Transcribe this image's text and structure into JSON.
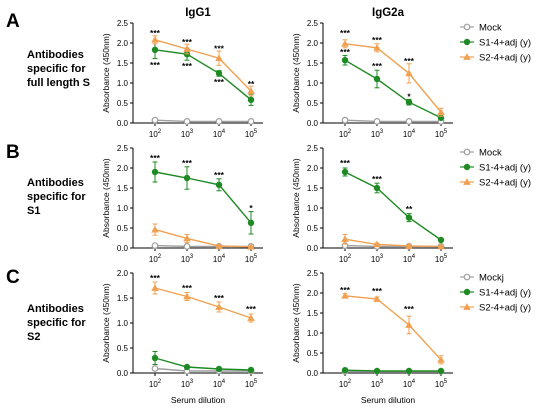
{
  "colors": {
    "mock": "#9e9e9e",
    "s1": "#1e8a24",
    "s2": "#f0a050"
  },
  "panel_letters": [
    "A",
    "B",
    "C"
  ],
  "row_labels": [
    [
      "Antibodies",
      "specific for",
      "full length S"
    ],
    [
      "Antibodies",
      "specific for",
      "S1"
    ],
    [
      "Antibodies",
      "specific for",
      "S2"
    ]
  ],
  "chart_data": [
    {
      "type": "line",
      "panel": "A",
      "title": "IgG1",
      "xlabel": "",
      "ylabel": "Absorbance (450nm)",
      "x": [
        "10^2",
        "10^3",
        "10^4",
        "10^5"
      ],
      "ylim": [
        0,
        2.5
      ],
      "yticks": [
        "0.0",
        "0.5",
        "1.0",
        "1.5",
        "2.0",
        "2.5"
      ],
      "series": [
        {
          "name": "Mock",
          "marker": "circle",
          "values": [
            0.07,
            0.04,
            0.04,
            0.04
          ],
          "errors": [
            0.02,
            0.01,
            0.01,
            0.01
          ]
        },
        {
          "name": "S1-4+adj (y)",
          "marker": "dot",
          "values": [
            1.83,
            1.72,
            1.24,
            0.58
          ],
          "errors": [
            0.22,
            0.15,
            0.07,
            0.14
          ]
        },
        {
          "name": "S2-4+adj (y)",
          "marker": "triangle",
          "values": [
            2.08,
            1.85,
            1.62,
            0.8
          ],
          "errors": [
            0.1,
            0.12,
            0.18,
            0.12
          ]
        }
      ],
      "annotations": [
        {
          "text": "***",
          "x": 0,
          "y": 2.25
        },
        {
          "text": "***",
          "x": 0,
          "y": 1.45
        },
        {
          "text": "***",
          "x": 1,
          "y": 2.02
        },
        {
          "text": "***",
          "x": 1,
          "y": 1.42
        },
        {
          "text": "***",
          "x": 2,
          "y": 1.86
        },
        {
          "text": "***",
          "x": 2,
          "y": 1.02
        },
        {
          "text": "**",
          "x": 3,
          "y": 0.97
        }
      ]
    },
    {
      "type": "line",
      "panel": "A",
      "title": "IgG2a",
      "xlabel": "",
      "ylabel": "Absorbance (450nm)",
      "x": [
        "10^2",
        "10^3",
        "10^4",
        "10^5"
      ],
      "ylim": [
        0,
        2.5
      ],
      "yticks": [
        "0.0",
        "0.5",
        "1.0",
        "1.5",
        "2.0",
        "2.5"
      ],
      "legend_position": "right",
      "series": [
        {
          "name": "Mock",
          "marker": "circle",
          "values": [
            0.07,
            0.04,
            0.04,
            0.04
          ],
          "errors": [
            0.02,
            0.01,
            0.01,
            0.01
          ]
        },
        {
          "name": "S1-4+adj (y)",
          "marker": "dot",
          "values": [
            1.57,
            1.1,
            0.52,
            0.13
          ],
          "errors": [
            0.12,
            0.22,
            0.07,
            0.04
          ]
        },
        {
          "name": "S2-4+adj (y)",
          "marker": "triangle",
          "values": [
            1.98,
            1.88,
            1.24,
            0.27
          ],
          "errors": [
            0.1,
            0.1,
            0.24,
            0.1
          ]
        }
      ],
      "annotations": [
        {
          "text": "***",
          "x": 0,
          "y": 2.25
        },
        {
          "text": "***",
          "x": 0,
          "y": 1.77
        },
        {
          "text": "***",
          "x": 1,
          "y": 2.07
        },
        {
          "text": "***",
          "x": 1,
          "y": 1.43
        },
        {
          "text": "***",
          "x": 2,
          "y": 1.55
        },
        {
          "text": "*",
          "x": 2,
          "y": 0.66
        }
      ]
    },
    {
      "type": "line",
      "panel": "B",
      "title": "",
      "xlabel": "",
      "ylabel": "Absorbance (450nm)",
      "x": [
        "10^2",
        "10^3",
        "10^4",
        "10^5"
      ],
      "ylim": [
        0,
        2.5
      ],
      "yticks": [
        "0.0",
        "0.5",
        "1.0",
        "1.5",
        "2.0",
        "2.5"
      ],
      "series": [
        {
          "name": "Mock",
          "marker": "circle",
          "values": [
            0.06,
            0.04,
            0.04,
            0.04
          ],
          "errors": [
            0.02,
            0.01,
            0.01,
            0.01
          ]
        },
        {
          "name": "S1-4+adj (y)",
          "marker": "dot",
          "values": [
            1.9,
            1.75,
            1.58,
            0.63
          ],
          "errors": [
            0.25,
            0.28,
            0.15,
            0.28
          ]
        },
        {
          "name": "S2-4+adj (y)",
          "marker": "triangle",
          "values": [
            0.46,
            0.24,
            0.05,
            0.03
          ],
          "errors": [
            0.14,
            0.1,
            0.02,
            0.01
          ]
        }
      ],
      "annotations": [
        {
          "text": "***",
          "x": 0,
          "y": 2.25
        },
        {
          "text": "***",
          "x": 1,
          "y": 2.13
        },
        {
          "text": "***",
          "x": 2,
          "y": 1.83
        },
        {
          "text": "*",
          "x": 3,
          "y": 1.0
        }
      ]
    },
    {
      "type": "line",
      "panel": "B",
      "title": "",
      "xlabel": "",
      "ylabel": "Absorbance (450nm)",
      "x": [
        "10^2",
        "10^3",
        "10^4",
        "10^5"
      ],
      "ylim": [
        0,
        2.5
      ],
      "yticks": [
        "0.0",
        "0.5",
        "1.0",
        "1.5",
        "2.0",
        "2.5"
      ],
      "legend_position": "right",
      "series": [
        {
          "name": "Mock",
          "marker": "circle",
          "values": [
            0.06,
            0.04,
            0.04,
            0.04
          ],
          "errors": [
            0.02,
            0.01,
            0.01,
            0.01
          ]
        },
        {
          "name": "S1-4+adj (y)",
          "marker": "dot",
          "values": [
            1.9,
            1.5,
            0.76,
            0.2
          ],
          "errors": [
            0.1,
            0.12,
            0.1,
            0.03
          ]
        },
        {
          "name": "S2-4+adj (y)",
          "marker": "triangle",
          "values": [
            0.22,
            0.09,
            0.05,
            0.04
          ],
          "errors": [
            0.12,
            0.03,
            0.02,
            0.01
          ]
        }
      ],
      "annotations": [
        {
          "text": "***",
          "x": 0,
          "y": 2.12
        },
        {
          "text": "***",
          "x": 1,
          "y": 1.73
        },
        {
          "text": "**",
          "x": 2,
          "y": 0.98
        }
      ]
    },
    {
      "type": "line",
      "panel": "C",
      "title": "",
      "xlabel": "Serum dilution",
      "ylabel": "Absorbance (450nm)",
      "x": [
        "10^2",
        "10^3",
        "10^4",
        "10^5"
      ],
      "ylim": [
        0,
        2.0
      ],
      "yticks": [
        "0.0",
        "0.5",
        "1.0",
        "1.5",
        "2.0"
      ],
      "series": [
        {
          "name": "Mockj",
          "marker": "circle",
          "values": [
            0.09,
            0.04,
            0.04,
            0.04
          ],
          "errors": [
            0.02,
            0.01,
            0.01,
            0.01
          ]
        },
        {
          "name": "S1-4+adj (y)",
          "marker": "dot",
          "values": [
            0.3,
            0.12,
            0.08,
            0.06
          ],
          "errors": [
            0.13,
            0.03,
            0.02,
            0.02
          ]
        },
        {
          "name": "S2-4+adj (y)",
          "marker": "triangle",
          "values": [
            1.7,
            1.53,
            1.32,
            1.1
          ],
          "errors": [
            0.12,
            0.08,
            0.1,
            0.08
          ]
        }
      ],
      "annotations": [
        {
          "text": "***",
          "x": 0,
          "y": 1.9
        },
        {
          "text": "***",
          "x": 1,
          "y": 1.7
        },
        {
          "text": "***",
          "x": 2,
          "y": 1.5
        },
        {
          "text": "***",
          "x": 3,
          "y": 1.28
        }
      ]
    },
    {
      "type": "line",
      "panel": "C",
      "title": "",
      "xlabel": "Serum dilution",
      "ylabel": "Absorbance (450nm)",
      "x": [
        "10^2",
        "10^3",
        "10^4",
        "10^5"
      ],
      "ylim": [
        0,
        2.5
      ],
      "yticks": [
        "0.0",
        "0.5",
        "1.0",
        "1.5",
        "2.0",
        "2.5"
      ],
      "legend_position": "right",
      "series": [
        {
          "name": "Mockj",
          "marker": "circle",
          "values": [
            0.04,
            0.04,
            0.04,
            0.04
          ],
          "errors": [
            0.01,
            0.01,
            0.01,
            0.01
          ]
        },
        {
          "name": "S1-4+adj (y)",
          "marker": "dot",
          "values": [
            0.07,
            0.05,
            0.05,
            0.05
          ],
          "errors": [
            0.02,
            0.01,
            0.01,
            0.01
          ]
        },
        {
          "name": "S2-4+adj (y)",
          "marker": "triangle",
          "values": [
            1.93,
            1.85,
            1.2,
            0.33
          ],
          "errors": [
            0.05,
            0.05,
            0.22,
            0.1
          ]
        }
      ],
      "annotations": [
        {
          "text": "***",
          "x": 0,
          "y": 2.08
        },
        {
          "text": "***",
          "x": 1,
          "y": 2.05
        },
        {
          "text": "***",
          "x": 2,
          "y": 1.6
        }
      ]
    }
  ]
}
